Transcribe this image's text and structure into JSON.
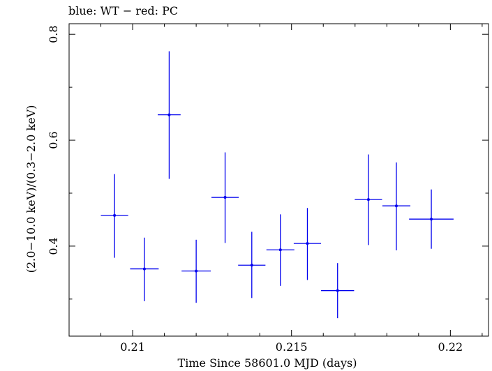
{
  "chart_data": {
    "type": "scatter",
    "title": "blue: WT − red: PC",
    "xlabel": "Time Since 58601.0 MJD (days)",
    "ylabel": "(2.0−10.0 keV)/(0.3−2.0 keV)",
    "xlim": [
      0.208,
      0.2212
    ],
    "ylim": [
      0.23,
      0.82
    ],
    "xticks": [
      {
        "value": 0.21,
        "label": "0.21"
      },
      {
        "value": 0.215,
        "label": "0.215"
      },
      {
        "value": 0.22,
        "label": "0.22"
      }
    ],
    "yticks": [
      {
        "value": 0.4,
        "label": "0.4"
      },
      {
        "value": 0.6,
        "label": "0.6"
      },
      {
        "value": 0.8,
        "label": "0.8"
      }
    ],
    "series": [
      {
        "color": "#0000ee",
        "points": [
          {
            "x": 0.20943,
            "xerr": 0.00043,
            "y": 0.458,
            "ylo": 0.378,
            "yhi": 0.536
          },
          {
            "x": 0.21037,
            "xerr": 0.00045,
            "y": 0.357,
            "ylo": 0.296,
            "yhi": 0.416
          },
          {
            "x": 0.21115,
            "xerr": 0.00036,
            "y": 0.648,
            "ylo": 0.527,
            "yhi": 0.768
          },
          {
            "x": 0.212,
            "xerr": 0.00046,
            "y": 0.353,
            "ylo": 0.293,
            "yhi": 0.412
          },
          {
            "x": 0.21291,
            "xerr": 0.00043,
            "y": 0.492,
            "ylo": 0.406,
            "yhi": 0.577
          },
          {
            "x": 0.21375,
            "xerr": 0.00043,
            "y": 0.364,
            "ylo": 0.302,
            "yhi": 0.427
          },
          {
            "x": 0.21465,
            "xerr": 0.00044,
            "y": 0.393,
            "ylo": 0.325,
            "yhi": 0.46
          },
          {
            "x": 0.2155,
            "xerr": 0.00043,
            "y": 0.405,
            "ylo": 0.336,
            "yhi": 0.472
          },
          {
            "x": 0.21645,
            "xerr": 0.00052,
            "y": 0.316,
            "ylo": 0.264,
            "yhi": 0.368
          },
          {
            "x": 0.21742,
            "xerr": 0.00043,
            "y": 0.488,
            "ylo": 0.402,
            "yhi": 0.573
          },
          {
            "x": 0.2183,
            "xerr": 0.00044,
            "y": 0.476,
            "ylo": 0.392,
            "yhi": 0.558
          },
          {
            "x": 0.2194,
            "xerr": 0.0007,
            "y": 0.451,
            "ylo": 0.395,
            "yhi": 0.507
          }
        ]
      }
    ]
  }
}
